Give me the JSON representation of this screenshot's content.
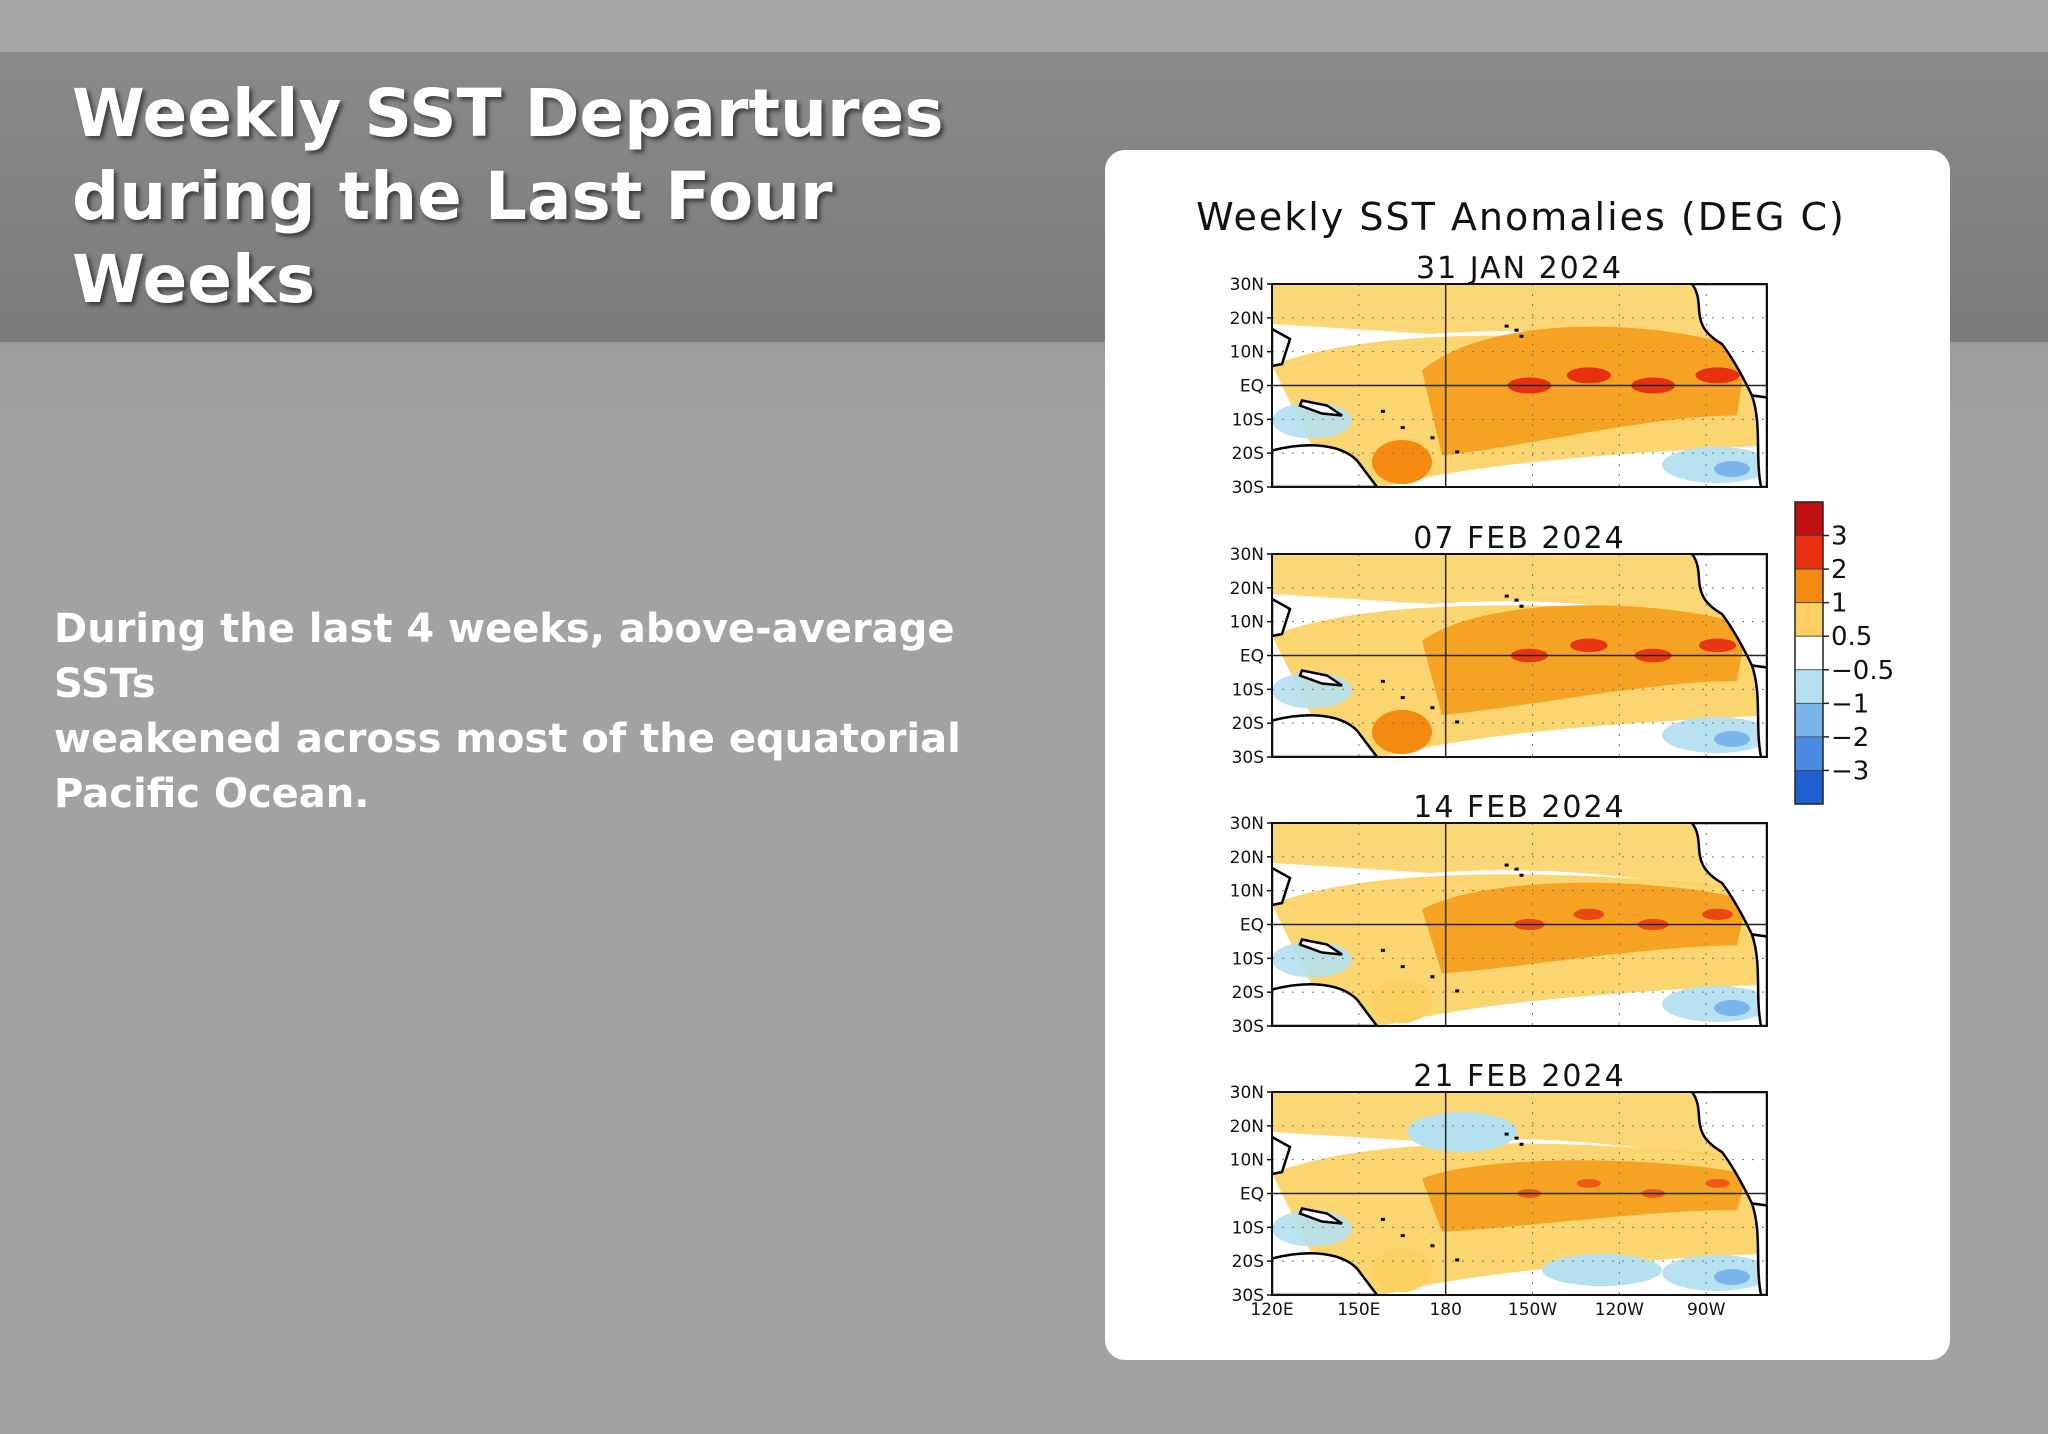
{
  "slide": {
    "title_lines": [
      "Weekly SST Departures",
      "during the Last Four",
      "Weeks"
    ],
    "body_lines": [
      "During the last 4 weeks, above-average SSTs",
      "weakened across most of the equatorial",
      "Pacific Ocean."
    ]
  },
  "figure": {
    "title": "Weekly SST Anomalies (DEG C)",
    "lat_labels": [
      "30N",
      "20N",
      "10N",
      "EQ",
      "10S",
      "20S",
      "30S"
    ],
    "lon_labels": [
      "120E",
      "150E",
      "180",
      "150W",
      "120W",
      "90W"
    ],
    "colorbar": {
      "labels": [
        "3",
        "2",
        "1",
        "0.5",
        "−0.5",
        "−1",
        "−2",
        "−3"
      ],
      "colors": [
        "#c01010",
        "#e83010",
        "#f58a10",
        "#fbd060",
        "#ffffff",
        "#b4e0f0",
        "#7ab4ea",
        "#4a8ae0",
        "#1f5fd0"
      ]
    },
    "panels": [
      {
        "date": "31 JAN 2024"
      },
      {
        "date": "07 FEB 2024"
      },
      {
        "date": "14 FEB 2024"
      },
      {
        "date": "21 FEB 2024"
      }
    ],
    "map_colors": {
      "warm_weak": "#fbd060",
      "warm": "#f5a020",
      "warm_core": "#f58a10",
      "hot": "#e83010",
      "very_hot": "#c01010",
      "cool": "#b4e0f0",
      "cooler": "#7ab4ea",
      "land": "#ffffff",
      "coast": "#000000"
    }
  }
}
